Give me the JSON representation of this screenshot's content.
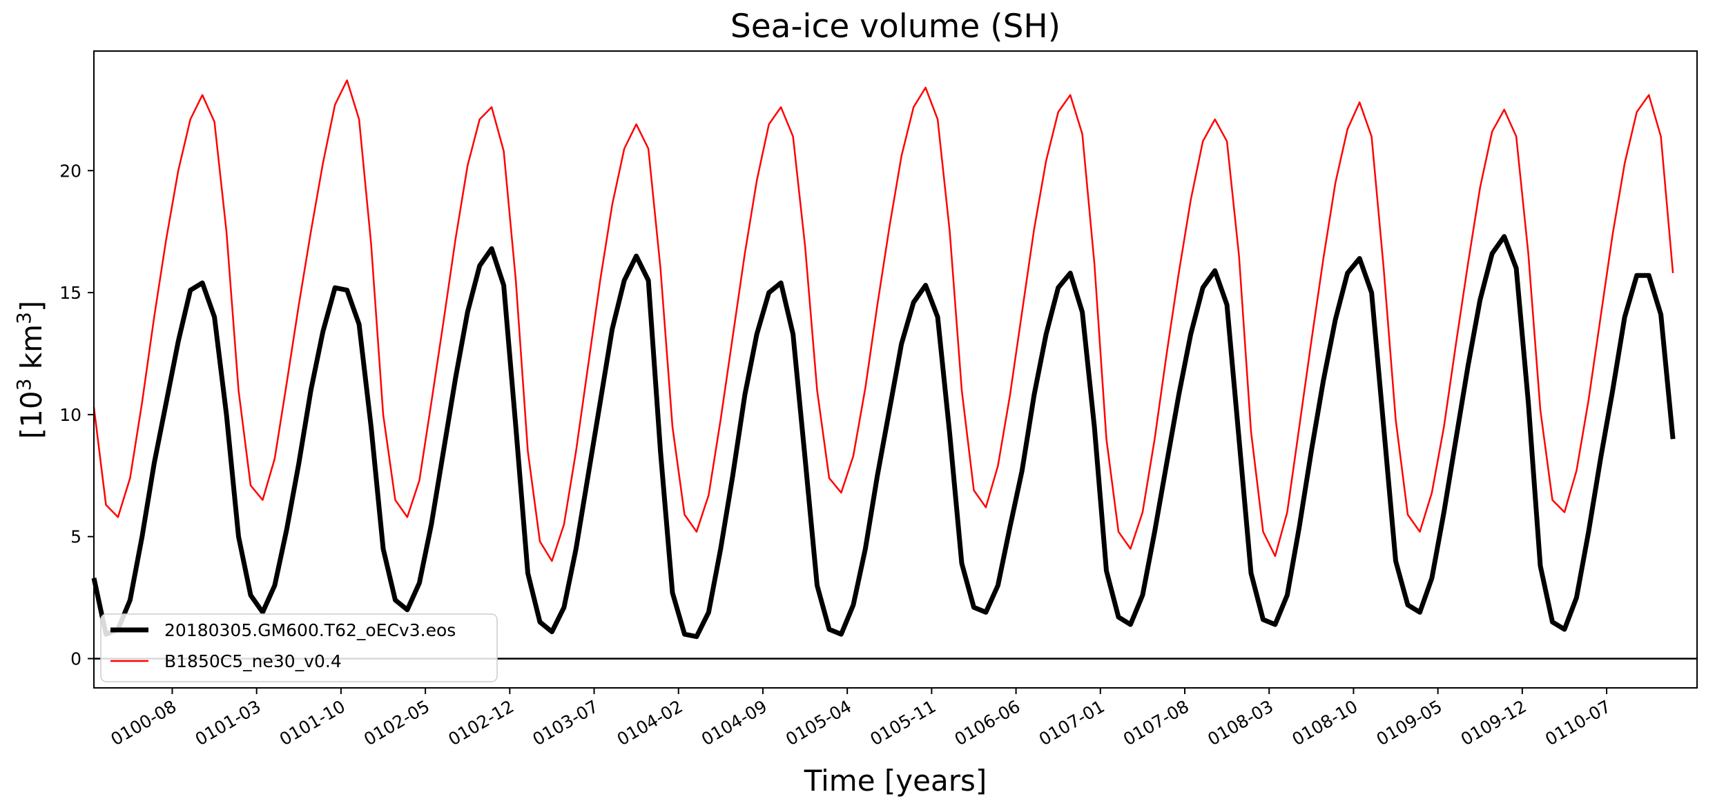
{
  "chart_data": {
    "type": "line",
    "title": "Sea-ice volume (SH)",
    "xlabel": "Time [years]",
    "ylabel": "[10³ km³]",
    "ylabel_parts": {
      "open": "[10",
      "exp1": "3",
      "mid": " km",
      "exp2": "3",
      "close": "]"
    },
    "xlim": [
      0,
      133
    ],
    "ylim": [
      -1.2,
      24.9
    ],
    "yticks": [
      0,
      5,
      10,
      15,
      20
    ],
    "xticks": [
      {
        "pos": 6.5,
        "label": "0100-08"
      },
      {
        "pos": 13.5,
        "label": "0101-03"
      },
      {
        "pos": 20.5,
        "label": "0101-10"
      },
      {
        "pos": 27.5,
        "label": "0102-05"
      },
      {
        "pos": 34.5,
        "label": "0102-12"
      },
      {
        "pos": 41.5,
        "label": "0103-07"
      },
      {
        "pos": 48.5,
        "label": "0104-02"
      },
      {
        "pos": 55.5,
        "label": "0104-09"
      },
      {
        "pos": 62.5,
        "label": "0105-04"
      },
      {
        "pos": 69.5,
        "label": "0105-11"
      },
      {
        "pos": 76.5,
        "label": "0106-06"
      },
      {
        "pos": 83.5,
        "label": "0107-01"
      },
      {
        "pos": 90.5,
        "label": "0107-08"
      },
      {
        "pos": 97.5,
        "label": "0108-03"
      },
      {
        "pos": 104.5,
        "label": "0108-10"
      },
      {
        "pos": 111.5,
        "label": "0109-05"
      },
      {
        "pos": 118.5,
        "label": "0109-12"
      },
      {
        "pos": 125.5,
        "label": "0110-07"
      }
    ],
    "zero_line": 0,
    "legend_position": "lower-left",
    "series": [
      {
        "name": "20180305.GM600.T62_oECv3.eos",
        "color": "#000000",
        "style": "thick",
        "x_start": 0,
        "values": [
          3.3,
          1.0,
          1.2,
          2.4,
          5.0,
          8.0,
          10.5,
          13.0,
          15.1,
          15.4,
          14.0,
          10.0,
          5.0,
          2.6,
          1.9,
          3.0,
          5.3,
          8.0,
          11.0,
          13.4,
          15.2,
          15.1,
          13.7,
          9.5,
          4.5,
          2.4,
          2.0,
          3.1,
          5.5,
          8.5,
          11.5,
          14.2,
          16.1,
          16.8,
          15.3,
          9.5,
          3.5,
          1.5,
          1.1,
          2.1,
          4.5,
          7.5,
          10.5,
          13.5,
          15.5,
          16.5,
          15.5,
          8.5,
          2.7,
          1.0,
          0.9,
          1.9,
          4.5,
          7.5,
          10.8,
          13.3,
          15.0,
          15.4,
          13.3,
          8.2,
          3.0,
          1.2,
          1.0,
          2.2,
          4.5,
          7.5,
          10.2,
          12.9,
          14.6,
          15.3,
          14.0,
          9.2,
          3.9,
          2.1,
          1.9,
          3.0,
          5.4,
          7.7,
          10.8,
          13.3,
          15.2,
          15.8,
          14.2,
          9.5,
          3.6,
          1.7,
          1.4,
          2.6,
          5.2,
          8.0,
          10.8,
          13.3,
          15.2,
          15.9,
          14.5,
          9.0,
          3.5,
          1.6,
          1.4,
          2.6,
          5.4,
          8.5,
          11.4,
          13.9,
          15.8,
          16.4,
          15.0,
          9.5,
          4.0,
          2.2,
          1.9,
          3.3,
          6.0,
          9.0,
          12.0,
          14.7,
          16.6,
          17.3,
          16.0,
          10.5,
          3.8,
          1.5,
          1.2,
          2.5,
          5.2,
          8.2,
          11.0,
          14.0,
          15.7,
          15.7,
          14.1,
          9.0
        ]
      },
      {
        "name": "B1850C5_ne30_v0.4",
        "color": "#ff0000",
        "style": "thin",
        "x_start": 0,
        "values": [
          10.3,
          6.3,
          5.8,
          7.4,
          10.5,
          14.0,
          17.2,
          20.0,
          22.1,
          23.1,
          22.0,
          17.5,
          11.0,
          7.1,
          6.5,
          8.2,
          11.3,
          14.5,
          17.5,
          20.3,
          22.7,
          23.7,
          22.1,
          17.0,
          10.0,
          6.5,
          5.8,
          7.3,
          10.5,
          13.8,
          17.2,
          20.2,
          22.1,
          22.6,
          20.8,
          15.5,
          8.5,
          4.8,
          4.0,
          5.5,
          8.5,
          12.0,
          15.5,
          18.6,
          20.9,
          21.9,
          20.9,
          16.0,
          9.5,
          5.9,
          5.2,
          6.7,
          9.8,
          13.2,
          16.6,
          19.6,
          21.9,
          22.6,
          21.4,
          16.9,
          11.0,
          7.4,
          6.8,
          8.3,
          11.1,
          14.5,
          17.7,
          20.6,
          22.6,
          23.4,
          22.1,
          17.5,
          11.0,
          6.9,
          6.2,
          7.9,
          10.8,
          14.2,
          17.6,
          20.4,
          22.4,
          23.1,
          21.5,
          16.2,
          9.0,
          5.2,
          4.5,
          6.0,
          9.0,
          12.5,
          15.8,
          18.8,
          21.2,
          22.1,
          21.2,
          16.5,
          9.3,
          5.2,
          4.2,
          6.0,
          9.5,
          13.0,
          16.4,
          19.5,
          21.7,
          22.8,
          21.4,
          16.0,
          9.8,
          5.9,
          5.2,
          6.8,
          9.5,
          12.9,
          16.2,
          19.3,
          21.6,
          22.5,
          21.4,
          16.6,
          10.2,
          6.5,
          6.0,
          7.7,
          10.6,
          14.0,
          17.4,
          20.3,
          22.4,
          23.1,
          21.4,
          15.8
        ]
      }
    ]
  }
}
